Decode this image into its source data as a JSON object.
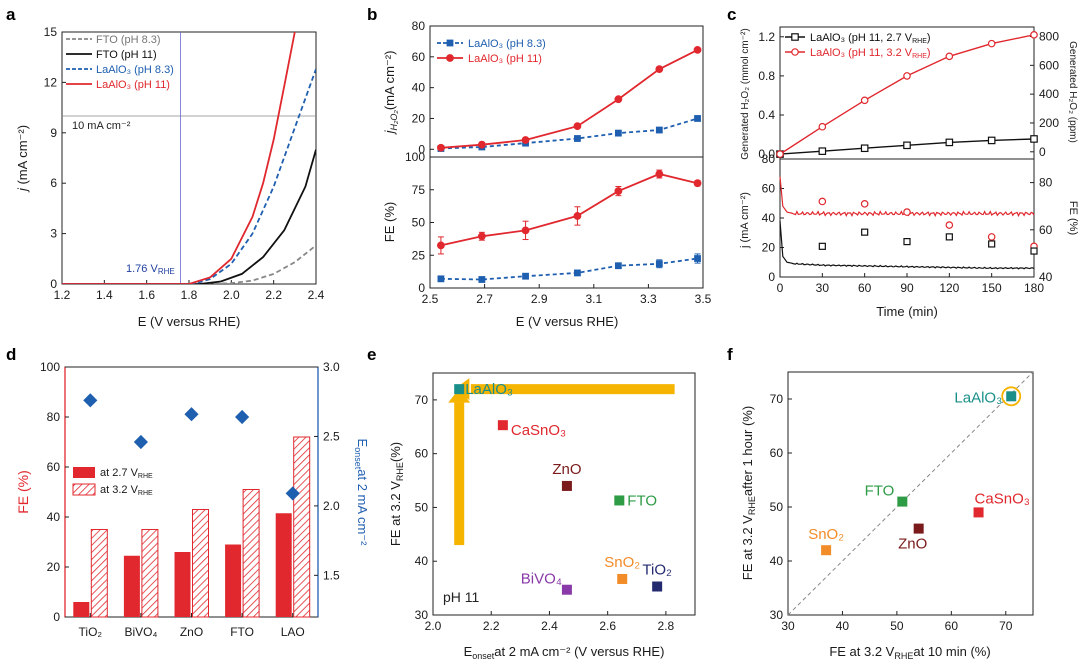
{
  "colors": {
    "red": "#e0282e",
    "blue": "#1f5fb0",
    "black": "#111111",
    "gray": "#888888",
    "orange": "#f5b400",
    "teal": "#1a8f8a",
    "green": "#2e9b45",
    "maroon": "#7a1a1a",
    "purple": "#8a3aa8",
    "sno2": "#f28c28",
    "navy": "#232a70",
    "diamond": "#1f5fb0"
  },
  "chart_data": [
    {
      "id": "a",
      "panel": "a",
      "type": "line",
      "xlabel": "E (V versus RHE)",
      "ylabel": "j (mA cm⁻²)",
      "xlim": [
        1.2,
        2.4
      ],
      "ylim": [
        0,
        15
      ],
      "xticks": [
        "1.2",
        "1.4",
        "1.6",
        "1.8",
        "2.0",
        "2.2",
        "2.4"
      ],
      "yticks": [
        "0",
        "3",
        "6",
        "9",
        "12",
        "15"
      ],
      "annotations": {
        "hline": "10 mA cm⁻²",
        "hline_value": 10,
        "vline": "1.76 V",
        "vline_sub": "RHE",
        "vline_value": 1.76
      },
      "series": [
        {
          "name": "FTO (pH 8.3)",
          "style": "dashed",
          "color": "gray",
          "x": [
            1.2,
            1.9,
            2.0,
            2.1,
            2.2,
            2.3,
            2.4
          ],
          "y": [
            0,
            0,
            0.05,
            0.2,
            0.6,
            1.3,
            2.3
          ]
        },
        {
          "name": "FTO (pH 11)",
          "style": "solid",
          "color": "black",
          "x": [
            1.2,
            1.85,
            1.95,
            2.05,
            2.15,
            2.25,
            2.35,
            2.4
          ],
          "y": [
            0,
            0,
            0.15,
            0.6,
            1.6,
            3.2,
            5.8,
            8.0
          ]
        },
        {
          "name": "LaAlO₃ (pH 8.3)",
          "style": "dashed",
          "color": "blue",
          "x": [
            1.2,
            1.82,
            1.9,
            2.0,
            2.1,
            2.2,
            2.3,
            2.4
          ],
          "y": [
            0,
            0,
            0.3,
            1.2,
            3.0,
            5.8,
            9.3,
            12.8
          ]
        },
        {
          "name": "LaAlO₃ (pH 11)",
          "style": "solid",
          "color": "red",
          "x": [
            1.2,
            1.8,
            1.9,
            2.0,
            2.1,
            2.15,
            2.2,
            2.25,
            2.3
          ],
          "y": [
            0,
            0,
            0.4,
            1.5,
            4.0,
            6.0,
            8.6,
            11.8,
            15.0
          ]
        }
      ]
    },
    {
      "id": "b1",
      "panel": "b",
      "type": "line",
      "ylabel": "j H₂O₂ (mA cm⁻²)",
      "xlim": [
        2.5,
        3.5
      ],
      "ylim": [
        -5,
        80
      ],
      "yticks": [
        "0",
        "20",
        "40",
        "60",
        "80"
      ],
      "series": [
        {
          "name": "LaAlO₃ (pH 8.3)",
          "style": "dashed",
          "color": "blue",
          "marker": "square",
          "x": [
            2.54,
            2.69,
            2.85,
            3.04,
            3.19,
            3.34,
            3.48
          ],
          "y": [
            0.5,
            1.5,
            4,
            7,
            10.5,
            12.5,
            20
          ]
        },
        {
          "name": "LaAlO₃ (pH 11)",
          "style": "solid",
          "color": "red",
          "marker": "circle",
          "x": [
            2.54,
            2.69,
            2.85,
            3.04,
            3.19,
            3.34,
            3.48
          ],
          "y": [
            1,
            3,
            6,
            15,
            32.5,
            52,
            64.5
          ]
        }
      ]
    },
    {
      "id": "b2",
      "panel": "b",
      "type": "line",
      "xlabel": "E (V versus RHE)",
      "ylabel": "FE (%)",
      "xlim": [
        2.5,
        3.5
      ],
      "ylim": [
        0,
        100
      ],
      "xticks": [
        "2.5",
        "2.7",
        "2.9",
        "3.1",
        "3.3",
        "3.5"
      ],
      "yticks": [
        "0",
        "25",
        "50",
        "75",
        "100"
      ],
      "series": [
        {
          "name": "LaAlO₃ (pH 8.3)",
          "style": "dashed",
          "color": "blue",
          "marker": "square",
          "x": [
            2.54,
            2.69,
            2.85,
            3.04,
            3.19,
            3.34,
            3.48
          ],
          "y": [
            7,
            6.5,
            9,
            11.5,
            17,
            18.5,
            22.5
          ],
          "err": [
            1.5,
            1,
            1,
            1.5,
            2,
            3,
            3.5
          ]
        },
        {
          "name": "LaAlO₃ (pH 11)",
          "style": "solid",
          "color": "red",
          "marker": "circle",
          "x": [
            2.54,
            2.69,
            2.85,
            3.04,
            3.19,
            3.34,
            3.48
          ],
          "y": [
            32.5,
            39.5,
            44,
            55,
            74,
            87,
            80
          ],
          "err": [
            6.5,
            3,
            7,
            7,
            3.5,
            3,
            2
          ]
        }
      ]
    },
    {
      "id": "c1",
      "panel": "c",
      "type": "line",
      "ylabel_left": "Generated H₂O₂ (mmol cm⁻²)",
      "ylabel_right": "Generated H₂O₂ (ppm)",
      "xlim": [
        0,
        180
      ],
      "ylim_left": [
        -0.05,
        1.3
      ],
      "ylim_right": [
        -50,
        866
      ],
      "yticks_left": [
        "0.0",
        "0.4",
        "0.8",
        "1.2"
      ],
      "yticks_right": [
        "0",
        "200",
        "400",
        "600",
        "800"
      ],
      "series": [
        {
          "name": "LaAlO₃ (pH 11, 2.7 V",
          "name_sub": "RHE",
          "name_end": ")",
          "color": "black",
          "marker": "square",
          "x": [
            0,
            30,
            60,
            90,
            120,
            150,
            180
          ],
          "y": [
            0,
            0.03,
            0.06,
            0.09,
            0.12,
            0.14,
            0.155
          ]
        },
        {
          "name": "LaAlO₃ (pH 11, 3.2 V",
          "name_sub": "RHE",
          "name_end": ")",
          "color": "red",
          "marker": "circle",
          "x": [
            0,
            30,
            60,
            90,
            120,
            150,
            180
          ],
          "y": [
            0,
            0.28,
            0.55,
            0.8,
            1.0,
            1.13,
            1.22
          ]
        }
      ]
    },
    {
      "id": "c2",
      "panel": "c",
      "type": "line",
      "xlabel": "Time (min)",
      "ylabel_left": "j (mA cm⁻²)",
      "ylabel_right": "FE (%)",
      "xlim": [
        0,
        180
      ],
      "ylim_left": [
        0,
        80
      ],
      "ylim_right": [
        40,
        90
      ],
      "xticks": [
        "0",
        "30",
        "60",
        "90",
        "120",
        "150",
        "180"
      ],
      "yticks_left": [
        "0",
        "20",
        "40",
        "60",
        "80"
      ],
      "yticks_right": [
        "40",
        "60",
        "80"
      ],
      "current_3p2": {
        "x": [
          0,
          2,
          5,
          10,
          30,
          60,
          90,
          120,
          150,
          180
        ],
        "y": [
          68,
          48,
          44,
          43,
          43,
          43,
          43,
          43,
          43,
          43
        ]
      },
      "current_2p7": {
        "x": [
          0,
          2,
          5,
          10,
          30,
          60,
          90,
          120,
          150,
          180
        ],
        "y": [
          38,
          14,
          10,
          9,
          8,
          7.5,
          7,
          6.5,
          6,
          6
        ]
      },
      "fe_3p2": {
        "x": [
          30,
          60,
          90,
          120,
          150,
          180
        ],
        "y": [
          72,
          71,
          67.5,
          62,
          57,
          53
        ]
      },
      "fe_2p7": {
        "x": [
          30,
          60,
          90,
          120,
          150,
          180
        ],
        "y": [
          53,
          59,
          55,
          57,
          54,
          51
        ]
      }
    },
    {
      "id": "d",
      "panel": "d",
      "type": "bar",
      "categories": [
        "TiO₂",
        "BiVO₄",
        "ZnO",
        "FTO",
        "LAO"
      ],
      "ylabel_left": "FE (%)",
      "ylabel_right": "E onset at 2 mA cm⁻²",
      "ylim_left": [
        0,
        100
      ],
      "ylim_right": [
        1.2,
        3.0
      ],
      "yticks_left": [
        "0",
        "20",
        "40",
        "60",
        "80",
        "100"
      ],
      "yticks_right": [
        "1.5",
        "2.0",
        "2.5",
        "3.0"
      ],
      "series": [
        {
          "name": "at 2.7 V",
          "name_sub": "RHE",
          "fill": "solid",
          "values": [
            6,
            24.5,
            26,
            29,
            41.5
          ]
        },
        {
          "name": "at 3.2 V",
          "name_sub": "RHE",
          "fill": "hatched",
          "values": [
            35,
            35,
            43,
            51,
            72
          ]
        }
      ],
      "onset": [
        2.76,
        2.46,
        2.66,
        2.64,
        2.09
      ]
    },
    {
      "id": "e",
      "panel": "e",
      "type": "scatter",
      "xlabel": "E onset at 2 mA cm⁻² (V versus RHE)",
      "ylabel": "FE at 3.2 V RHE (%)",
      "xlim": [
        2.0,
        2.9
      ],
      "ylim": [
        30,
        75
      ],
      "xticks": [
        "2.0",
        "2.2",
        "2.4",
        "2.6",
        "2.8"
      ],
      "yticks": [
        "30",
        "40",
        "50",
        "60",
        "70"
      ],
      "note": "pH 11",
      "points": [
        {
          "label": "LaAlO₃",
          "x": 2.09,
          "y": 72,
          "color": "teal"
        },
        {
          "label": "CaSnO₃",
          "x": 2.24,
          "y": 65.3,
          "color": "red"
        },
        {
          "label": "ZnO",
          "x": 2.46,
          "y": 54,
          "color": "maroon"
        },
        {
          "label": "FTO",
          "x": 2.64,
          "y": 51.3,
          "color": "green"
        },
        {
          "label": "BiVO₄",
          "x": 2.46,
          "y": 34.7,
          "color": "purple"
        },
        {
          "label": "SnO₂",
          "x": 2.65,
          "y": 36.7,
          "color": "sno2"
        },
        {
          "label": "TiO₂",
          "x": 2.77,
          "y": 35.3,
          "color": "navy"
        }
      ]
    },
    {
      "id": "f",
      "panel": "f",
      "type": "scatter",
      "xlabel": "FE at 3.2 V RHE at 10 min (%)",
      "ylabel": "FE at 3.2 V RHE after 1 hour (%)",
      "xlim": [
        30,
        75
      ],
      "ylim": [
        30,
        75
      ],
      "xticks": [
        "30",
        "40",
        "50",
        "60",
        "70"
      ],
      "yticks": [
        "30",
        "40",
        "50",
        "60",
        "70"
      ],
      "points": [
        {
          "label": "LaAlO₃",
          "x": 71,
          "y": 70.5,
          "color": "teal"
        },
        {
          "label": "CaSnO₃",
          "x": 65,
          "y": 49,
          "color": "red"
        },
        {
          "label": "FTO",
          "x": 51,
          "y": 51,
          "color": "green"
        },
        {
          "label": "ZnO",
          "x": 54,
          "y": 46,
          "color": "maroon"
        },
        {
          "label": "SnO₂",
          "x": 37,
          "y": 42,
          "color": "sno2"
        }
      ]
    }
  ],
  "labels": {
    "a": "a",
    "b": "b",
    "c": "c",
    "d": "d",
    "e": "e",
    "f": "f",
    "a_ylabel_j": "j",
    "a_ylabel_rest": "(mA cm⁻²)",
    "b_top_y_j": "j",
    "b_top_y_sub": "H₂O₂",
    "b_top_y_rest": "(mA cm⁻²)",
    "c_y_top_left": "Generated H₂O₂ (mmol cm⁻²)",
    "c_y_top_right": "Generated H₂O₂ (ppm)",
    "c_y_bot_left": "j (mA cm⁻²)",
    "c_y_bot_right": "FE (%)",
    "d_y_right_pre": "E",
    "d_y_right_sub": "onset",
    "d_y_right_post": "at 2 mA cm⁻²",
    "e_x_pre": "E",
    "e_x_sub": "onset",
    "e_x_post": "at 2 mA cm⁻² (V versus RHE)",
    "e_y_pre": "FE at 3.2 V",
    "e_y_sub": "RHE",
    "e_y_post": "(%)",
    "f_x_pre": "FE at 3.2 V",
    "f_x_sub": "RHE",
    "f_x_post": "at 10 min (%)",
    "f_y_pre": "FE at 3.2 V",
    "f_y_sub": "RHE",
    "f_y_post": "after 1 hour (%)"
  }
}
